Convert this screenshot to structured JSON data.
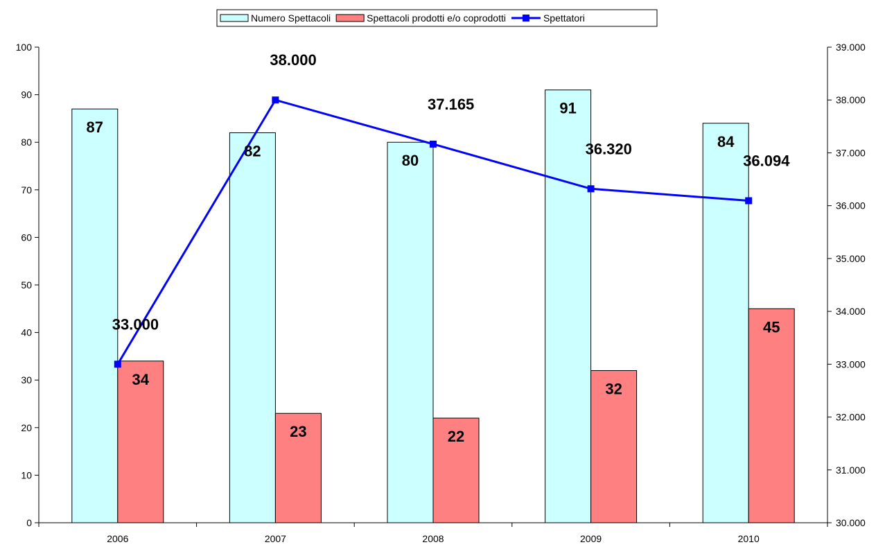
{
  "chart_data": {
    "type": "bar",
    "categories": [
      "2006",
      "2007",
      "2008",
      "2009",
      "2010"
    ],
    "series": [
      {
        "name": "Numero Spettacoli",
        "type": "bar",
        "axis": "left",
        "color": "#ccffff",
        "values": [
          87,
          82,
          80,
          91,
          84
        ],
        "labels": [
          "87",
          "82",
          "80",
          "91",
          "84"
        ]
      },
      {
        "name": "Spettacoli prodotti e/o coprodotti",
        "type": "bar",
        "axis": "left",
        "color": "#ff8080",
        "values": [
          34,
          23,
          22,
          32,
          45
        ],
        "labels": [
          "34",
          "23",
          "22",
          "32",
          "45"
        ]
      },
      {
        "name": "Spettatori",
        "type": "line",
        "axis": "right",
        "color": "#0000ff",
        "values": [
          33000,
          38000,
          37165,
          36320,
          36094
        ],
        "labels": [
          "33.000",
          "38.000",
          "37.165",
          "36.320",
          "36.094"
        ]
      }
    ],
    "y_left": {
      "min": 0,
      "max": 100,
      "ticks": [
        "0",
        "10",
        "20",
        "30",
        "40",
        "50",
        "60",
        "70",
        "80",
        "90",
        "100"
      ]
    },
    "y_right": {
      "min": 30000,
      "max": 39000,
      "ticks": [
        "30.000",
        "31.000",
        "32.000",
        "33.000",
        "34.000",
        "35.000",
        "36.000",
        "37.000",
        "38.000",
        "39.000"
      ]
    },
    "legend_position": "top-center",
    "grid": false
  }
}
